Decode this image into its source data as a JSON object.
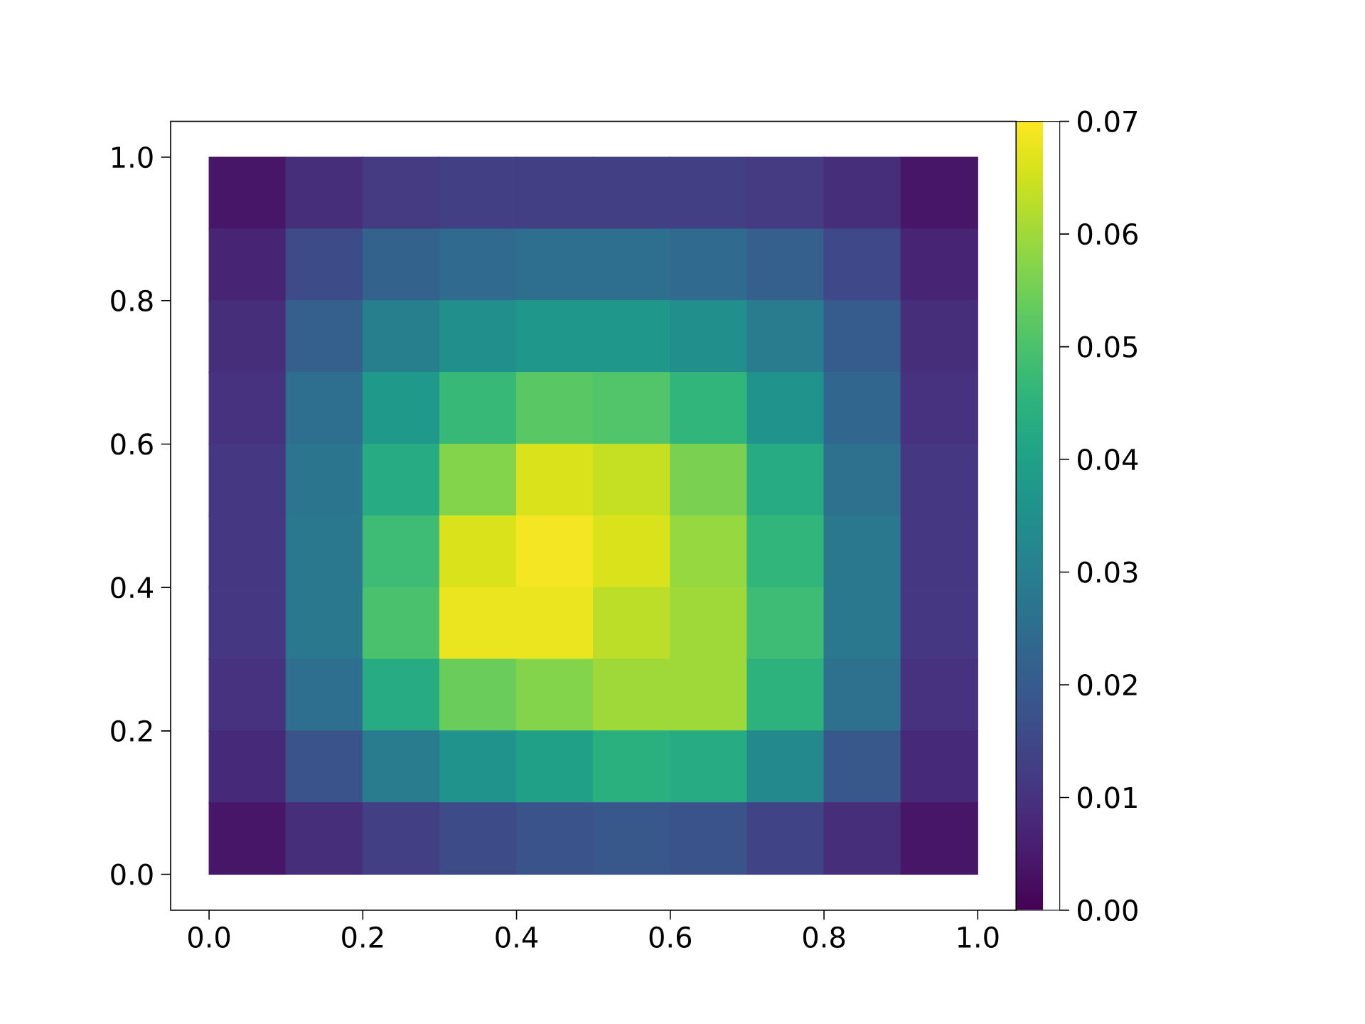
{
  "chart_data": {
    "type": "heatmap",
    "x": [
      0.05,
      0.15,
      0.25,
      0.35,
      0.45,
      0.55,
      0.65,
      0.75,
      0.85,
      0.95
    ],
    "y": [
      0.95,
      0.85,
      0.75,
      0.65,
      0.55,
      0.45,
      0.35,
      0.25,
      0.15,
      0.05
    ],
    "cells": [
      [
        0.004,
        0.009,
        0.012,
        0.013,
        0.013,
        0.013,
        0.013,
        0.012,
        0.009,
        0.004
      ],
      [
        0.007,
        0.016,
        0.022,
        0.024,
        0.025,
        0.025,
        0.024,
        0.021,
        0.015,
        0.007
      ],
      [
        0.009,
        0.021,
        0.03,
        0.035,
        0.037,
        0.037,
        0.035,
        0.029,
        0.02,
        0.009
      ],
      [
        0.01,
        0.025,
        0.038,
        0.047,
        0.052,
        0.051,
        0.046,
        0.036,
        0.023,
        0.01
      ],
      [
        0.011,
        0.027,
        0.043,
        0.057,
        0.066,
        0.064,
        0.056,
        0.043,
        0.026,
        0.011
      ],
      [
        0.011,
        0.028,
        0.048,
        0.066,
        0.069,
        0.066,
        0.059,
        0.046,
        0.028,
        0.011
      ],
      [
        0.011,
        0.028,
        0.05,
        0.068,
        0.068,
        0.063,
        0.06,
        0.048,
        0.028,
        0.011
      ],
      [
        0.01,
        0.025,
        0.043,
        0.054,
        0.057,
        0.06,
        0.06,
        0.045,
        0.026,
        0.01
      ],
      [
        0.008,
        0.018,
        0.029,
        0.036,
        0.04,
        0.044,
        0.043,
        0.033,
        0.019,
        0.008
      ],
      [
        0.004,
        0.009,
        0.013,
        0.016,
        0.018,
        0.019,
        0.018,
        0.014,
        0.009,
        0.004
      ]
    ],
    "xlim": [
      -0.05,
      1.05
    ],
    "ylim": [
      -0.05,
      1.05
    ],
    "xticks": [
      {
        "value": 0,
        "label": "0.0"
      },
      {
        "value": 0.2,
        "label": "0.2"
      },
      {
        "value": 0.4,
        "label": "0.4"
      },
      {
        "value": 0.6,
        "label": "0.6"
      },
      {
        "value": 0.8,
        "label": "0.8"
      },
      {
        "value": 1,
        "label": "1.0"
      }
    ],
    "yticks": [
      {
        "value": 0,
        "label": "0.0"
      },
      {
        "value": 0.2,
        "label": "0.2"
      },
      {
        "value": 0.4,
        "label": "0.4"
      },
      {
        "value": 0.6,
        "label": "0.6"
      },
      {
        "value": 0.8,
        "label": "0.8"
      },
      {
        "value": 1,
        "label": "1.0"
      }
    ],
    "clim": [
      0,
      0.07
    ],
    "cticks": [
      {
        "value": 0,
        "label": "0.00"
      },
      {
        "value": 0.01,
        "label": "0.01"
      },
      {
        "value": 0.02,
        "label": "0.02"
      },
      {
        "value": 0.03,
        "label": "0.03"
      },
      {
        "value": 0.04,
        "label": "0.04"
      },
      {
        "value": 0.05,
        "label": "0.05"
      },
      {
        "value": 0.06,
        "label": "0.06"
      },
      {
        "value": 0.07,
        "label": "0.07"
      }
    ]
  }
}
